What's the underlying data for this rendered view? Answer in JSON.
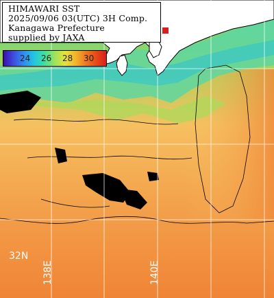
{
  "info": {
    "line1": "HIMAWARI SST",
    "line2": "2025/09/06 03(UTC) 3H Comp.",
    "line3": "Kanagawa Prefecture",
    "line4": "supplied by JAXA"
  },
  "colorbar": {
    "labels": [
      "24",
      "26",
      "28",
      "30"
    ],
    "colors": [
      "#3a0fa8",
      "#2f8ff0",
      "#3fe0a0",
      "#e6e23a",
      "#f07a22",
      "#d81e1e"
    ]
  },
  "grid": {
    "lat_label": "32N",
    "lon_labels": [
      "138E",
      "140E"
    ]
  },
  "map_colors": {
    "land": "#ffffff",
    "cloud": "#000000",
    "warm": "#f08a3a",
    "mid": "#f6c060",
    "cool": "#9ed65a",
    "cold": "#3fd0b8"
  }
}
